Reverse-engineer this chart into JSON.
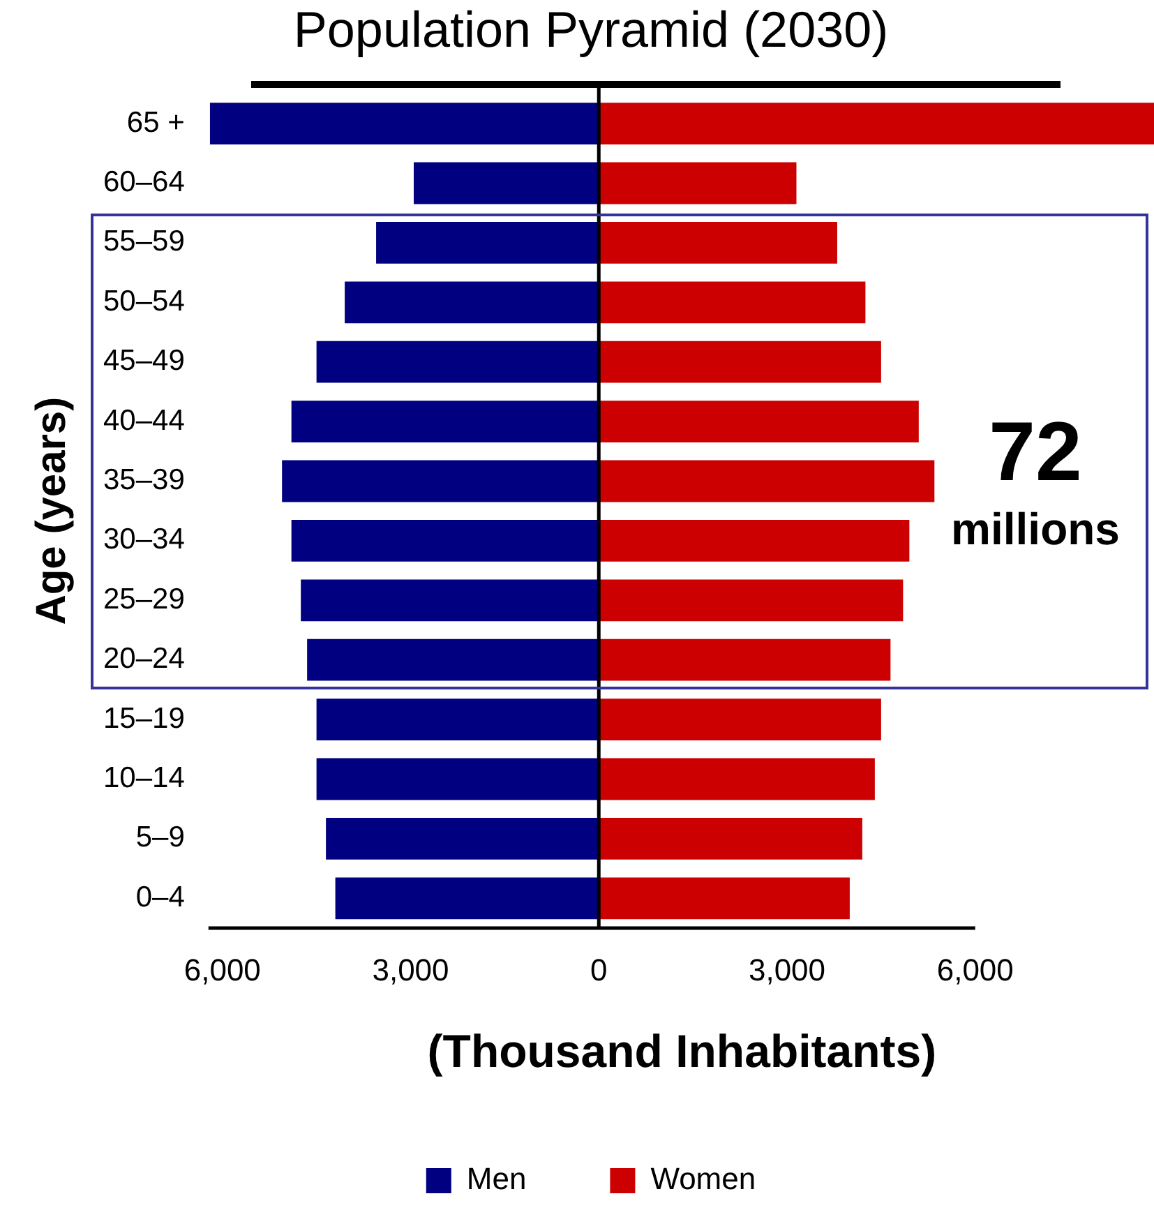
{
  "chart_data": {
    "type": "bar",
    "orientation": "horizontal",
    "stacked": true,
    "title": "Population Pyramid (2030)",
    "xlabel": "(Thousand Inhabitants)",
    "ylabel": "Age (years)",
    "categories": [
      "65 +",
      "60–64",
      "55–59",
      "50–54",
      "45–49",
      "40–44",
      "35–39",
      "30–34",
      "25–29",
      "20–24",
      "15–19",
      "10–14",
      "5–9",
      "0–4"
    ],
    "series": [
      {
        "name": "Men",
        "color": "#000080",
        "values": [
          -6200,
          -2950,
          -3550,
          -4050,
          -4500,
          -4900,
          -5050,
          -4900,
          -4750,
          -4650,
          -4500,
          -4500,
          -4350,
          -4200
        ]
      },
      {
        "name": "Women",
        "color": "#cc0000",
        "values": [
          8850,
          3150,
          3800,
          4250,
          4500,
          5100,
          5350,
          4950,
          4850,
          4650,
          4500,
          4400,
          4200,
          4000
        ]
      }
    ],
    "xlim": [
      -6200,
      8850
    ],
    "xticks": [
      {
        "value": -6000,
        "label": "6,000"
      },
      {
        "value": -3000,
        "label": "3,000"
      },
      0,
      {
        "value": 3000,
        "label": "3,000"
      },
      {
        "value": 6000,
        "label": "6,000"
      }
    ],
    "annotations": [
      "72",
      "millions"
    ],
    "ref_lines": [
      {
        "axis": "x",
        "value": 0,
        "color": "#000000",
        "line_style": "solid"
      }
    ],
    "legend": "bottom",
    "grid": false
  }
}
